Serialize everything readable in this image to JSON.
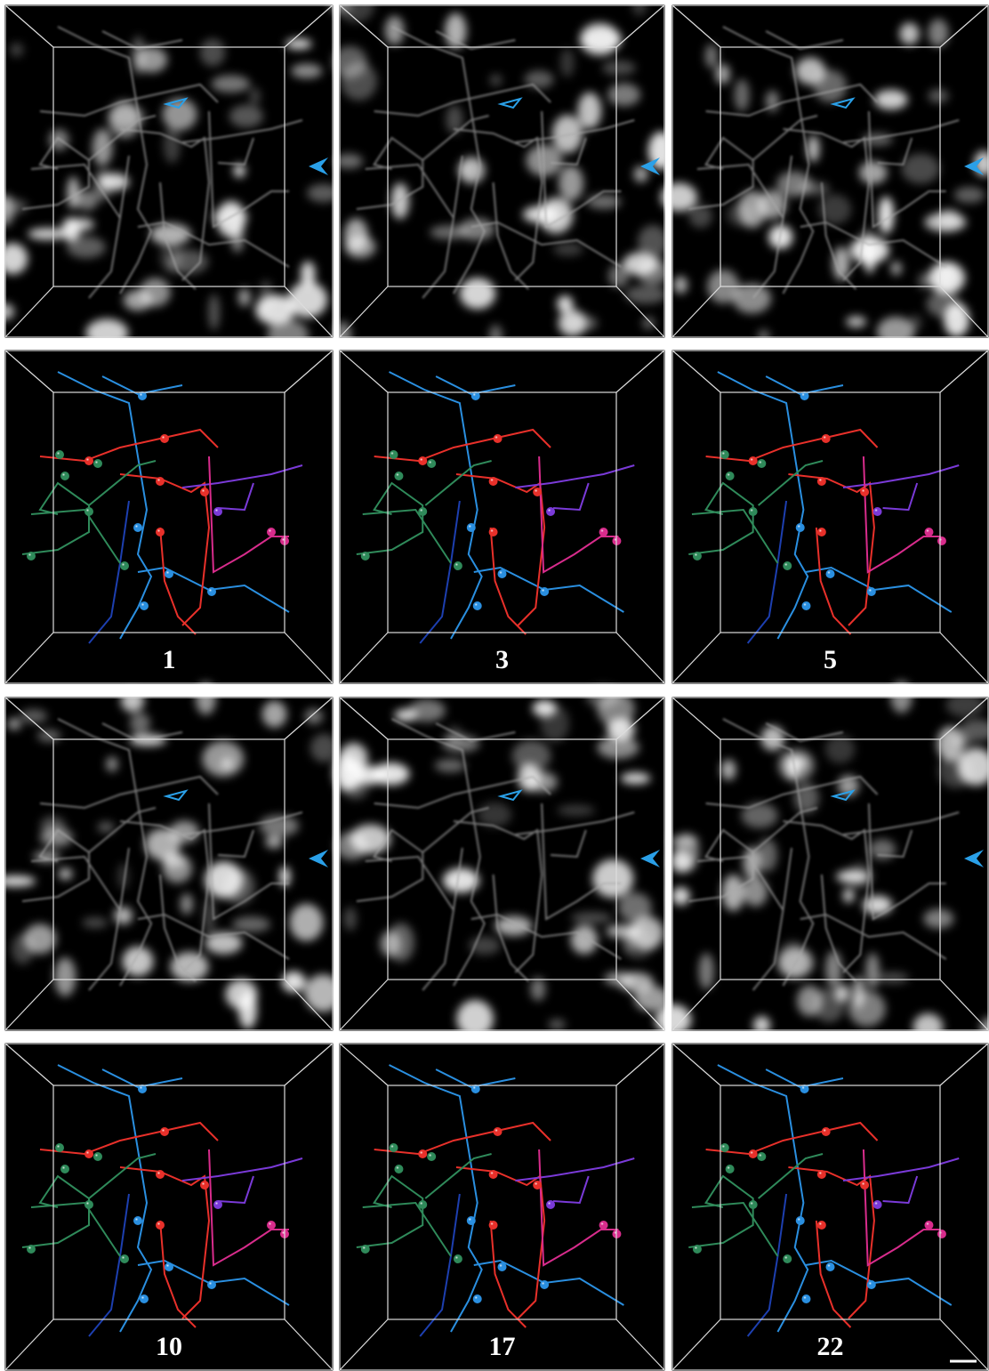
{
  "panels": [
    {
      "label": "1"
    },
    {
      "label": "3"
    },
    {
      "label": "5"
    },
    {
      "label": "10"
    },
    {
      "label": "17"
    },
    {
      "label": "22"
    }
  ]
}
